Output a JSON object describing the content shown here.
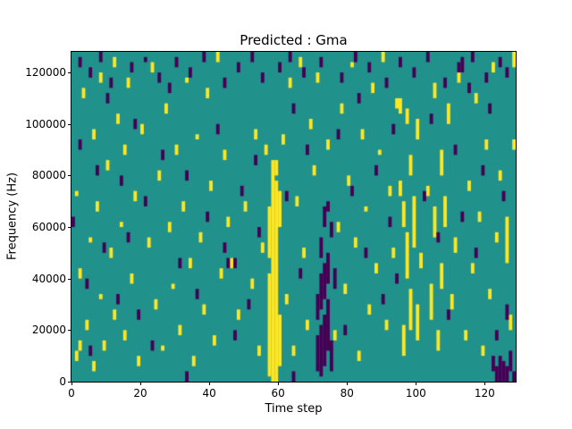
{
  "chart_data": {
    "type": "heatmap",
    "title": "Predicted : Gma",
    "xlabel": "Time step",
    "ylabel": "Frequency (Hz)",
    "x_range": [
      0,
      129
    ],
    "y_range": [
      0,
      128000
    ],
    "x_ticks": [
      0,
      20,
      40,
      60,
      80,
      100,
      120
    ],
    "y_ticks": [
      0,
      20000,
      40000,
      60000,
      80000,
      100000,
      120000
    ],
    "n_time_steps": 129,
    "n_freq_bins": 64,
    "freq_bin_hz": 2000,
    "legend": "none",
    "grid": false,
    "colors": {
      "background": "#21918c",
      "high": "#fde725",
      "low": "#440154"
    },
    "cells_note": "runs are [time_step, freq_bin_start, freq_bin_end]; freq_hz = bin * 2000",
    "cells_high": [
      [
        1,
        4,
        5
      ],
      [
        1,
        36,
        36
      ],
      [
        2,
        6,
        7
      ],
      [
        2,
        20,
        21
      ],
      [
        3,
        55,
        56
      ],
      [
        4,
        10,
        11
      ],
      [
        5,
        27,
        27
      ],
      [
        6,
        2,
        3
      ],
      [
        6,
        47,
        48
      ],
      [
        7,
        33,
        34
      ],
      [
        8,
        16,
        16
      ],
      [
        8,
        58,
        59
      ],
      [
        9,
        6,
        7
      ],
      [
        10,
        41,
        42
      ],
      [
        11,
        24,
        25
      ],
      [
        12,
        12,
        13
      ],
      [
        12,
        61,
        62
      ],
      [
        13,
        50,
        51
      ],
      [
        14,
        30,
        30
      ],
      [
        15,
        8,
        9
      ],
      [
        15,
        44,
        45
      ],
      [
        16,
        57,
        58
      ],
      [
        17,
        19,
        20
      ],
      [
        18,
        35,
        36
      ],
      [
        19,
        3,
        4
      ],
      [
        20,
        48,
        49
      ],
      [
        22,
        26,
        27
      ],
      [
        23,
        60,
        61
      ],
      [
        24,
        14,
        15
      ],
      [
        25,
        39,
        40
      ],
      [
        26,
        6,
        6
      ],
      [
        27,
        52,
        53
      ],
      [
        28,
        29,
        30
      ],
      [
        29,
        18,
        18
      ],
      [
        30,
        44,
        45
      ],
      [
        31,
        9,
        10
      ],
      [
        32,
        33,
        34
      ],
      [
        33,
        58,
        58
      ],
      [
        34,
        22,
        23
      ],
      [
        35,
        3,
        4
      ],
      [
        36,
        47,
        47
      ],
      [
        37,
        27,
        28
      ],
      [
        38,
        13,
        14
      ],
      [
        39,
        55,
        56
      ],
      [
        40,
        37,
        38
      ],
      [
        41,
        7,
        8
      ],
      [
        42,
        62,
        63
      ],
      [
        43,
        20,
        21
      ],
      [
        44,
        43,
        44
      ],
      [
        45,
        30,
        31
      ],
      [
        46,
        22,
        23
      ],
      [
        48,
        12,
        13
      ],
      [
        50,
        33,
        34
      ],
      [
        52,
        18,
        19
      ],
      [
        53,
        47,
        48
      ],
      [
        54,
        5,
        6
      ],
      [
        55,
        25,
        26
      ],
      [
        56,
        44,
        45
      ],
      [
        57,
        1,
        20
      ],
      [
        57,
        24,
        33
      ],
      [
        58,
        0,
        42
      ],
      [
        59,
        0,
        38
      ],
      [
        59,
        40,
        42
      ],
      [
        60,
        3,
        12
      ],
      [
        60,
        30,
        36
      ],
      [
        61,
        46,
        47
      ],
      [
        62,
        15,
        16
      ],
      [
        63,
        57,
        58
      ],
      [
        64,
        5,
        6
      ],
      [
        65,
        34,
        35
      ],
      [
        66,
        61,
        62
      ],
      [
        67,
        24,
        25
      ],
      [
        68,
        10,
        11
      ],
      [
        69,
        49,
        50
      ],
      [
        70,
        40,
        41
      ],
      [
        71,
        58,
        59
      ],
      [
        74,
        45,
        46
      ],
      [
        76,
        8,
        9
      ],
      [
        77,
        29,
        30
      ],
      [
        78,
        52,
        53
      ],
      [
        79,
        17,
        18
      ],
      [
        80,
        38,
        39
      ],
      [
        81,
        61,
        61
      ],
      [
        82,
        26,
        27
      ],
      [
        83,
        4,
        5
      ],
      [
        84,
        47,
        48
      ],
      [
        85,
        33,
        33
      ],
      [
        86,
        13,
        14
      ],
      [
        87,
        56,
        57
      ],
      [
        88,
        21,
        22
      ],
      [
        89,
        44,
        44
      ],
      [
        90,
        62,
        63
      ],
      [
        91,
        10,
        11
      ],
      [
        92,
        36,
        37
      ],
      [
        93,
        24,
        25
      ],
      [
        94,
        53,
        54
      ],
      [
        95,
        36,
        38
      ],
      [
        95,
        52,
        54
      ],
      [
        96,
        5,
        10
      ],
      [
        96,
        30,
        34
      ],
      [
        97,
        20,
        28
      ],
      [
        97,
        50,
        52
      ],
      [
        98,
        10,
        17
      ],
      [
        98,
        40,
        43
      ],
      [
        99,
        26,
        35
      ],
      [
        100,
        8,
        14
      ],
      [
        100,
        47,
        50
      ],
      [
        101,
        22,
        24
      ],
      [
        103,
        36,
        37
      ],
      [
        104,
        12,
        18
      ],
      [
        105,
        28,
        33
      ],
      [
        105,
        55,
        57
      ],
      [
        106,
        6,
        9
      ],
      [
        107,
        18,
        22
      ],
      [
        107,
        40,
        44
      ],
      [
        108,
        30,
        35
      ],
      [
        109,
        50,
        53
      ],
      [
        110,
        14,
        16
      ],
      [
        111,
        25,
        27
      ],
      [
        112,
        58,
        59
      ],
      [
        114,
        8,
        9
      ],
      [
        115,
        37,
        38
      ],
      [
        116,
        21,
        22
      ],
      [
        117,
        54,
        55
      ],
      [
        118,
        31,
        32
      ],
      [
        119,
        5,
        6
      ],
      [
        120,
        45,
        46
      ],
      [
        121,
        16,
        17
      ],
      [
        122,
        60,
        61
      ],
      [
        123,
        27,
        28
      ],
      [
        124,
        39,
        40
      ],
      [
        126,
        23,
        31
      ],
      [
        127,
        10,
        12
      ],
      [
        128,
        45,
        46
      ],
      [
        128,
        61,
        63
      ]
    ],
    "cells_low": [
      [
        2,
        61,
        62
      ],
      [
        5,
        59,
        60
      ],
      [
        8,
        62,
        63
      ],
      [
        11,
        57,
        58
      ],
      [
        17,
        60,
        61
      ],
      [
        21,
        62,
        62
      ],
      [
        25,
        58,
        59
      ],
      [
        30,
        61,
        62
      ],
      [
        34,
        59,
        60
      ],
      [
        38,
        62,
        63
      ],
      [
        44,
        57,
        58
      ],
      [
        48,
        60,
        61
      ],
      [
        52,
        62,
        63
      ],
      [
        55,
        58,
        59
      ],
      [
        60,
        60,
        61
      ],
      [
        63,
        62,
        63
      ],
      [
        67,
        59,
        60
      ],
      [
        72,
        61,
        62
      ],
      [
        78,
        58,
        59
      ],
      [
        82,
        62,
        63
      ],
      [
        86,
        60,
        61
      ],
      [
        91,
        57,
        58
      ],
      [
        95,
        61,
        62
      ],
      [
        99,
        59,
        60
      ],
      [
        103,
        62,
        63
      ],
      [
        108,
        57,
        58
      ],
      [
        112,
        60,
        61
      ],
      [
        113,
        60,
        62
      ],
      [
        116,
        62,
        63
      ],
      [
        120,
        58,
        59
      ],
      [
        124,
        61,
        62
      ],
      [
        126,
        59,
        60
      ],
      [
        0,
        30,
        31
      ],
      [
        2,
        45,
        46
      ],
      [
        4,
        18,
        19
      ],
      [
        5,
        5,
        6
      ],
      [
        7,
        40,
        41
      ],
      [
        9,
        25,
        26
      ],
      [
        10,
        54,
        55
      ],
      [
        13,
        15,
        16
      ],
      [
        14,
        38,
        39
      ],
      [
        16,
        27,
        28
      ],
      [
        18,
        49,
        50
      ],
      [
        19,
        12,
        13
      ],
      [
        21,
        34,
        35
      ],
      [
        23,
        6,
        7
      ],
      [
        26,
        43,
        44
      ],
      [
        28,
        56,
        57
      ],
      [
        31,
        22,
        23
      ],
      [
        33,
        0,
        1
      ],
      [
        33,
        39,
        40
      ],
      [
        36,
        16,
        17
      ],
      [
        39,
        31,
        32
      ],
      [
        42,
        48,
        49
      ],
      [
        44,
        25,
        26
      ],
      [
        45,
        22,
        23
      ],
      [
        47,
        8,
        9
      ],
      [
        47,
        22,
        23
      ],
      [
        49,
        36,
        37
      ],
      [
        51,
        14,
        15
      ],
      [
        53,
        42,
        43
      ],
      [
        54,
        28,
        29
      ],
      [
        62,
        35,
        36
      ],
      [
        64,
        0,
        1
      ],
      [
        64,
        52,
        53
      ],
      [
        66,
        20,
        21
      ],
      [
        68,
        44,
        45
      ],
      [
        71,
        2,
        8
      ],
      [
        71,
        12,
        16
      ],
      [
        72,
        1,
        10
      ],
      [
        72,
        14,
        20
      ],
      [
        72,
        24,
        27
      ],
      [
        73,
        3,
        12
      ],
      [
        73,
        16,
        22
      ],
      [
        73,
        30,
        33
      ],
      [
        74,
        6,
        15
      ],
      [
        74,
        19,
        24
      ],
      [
        74,
        33,
        34
      ],
      [
        75,
        2,
        7
      ],
      [
        75,
        28,
        30
      ],
      [
        76,
        18,
        21
      ],
      [
        77,
        47,
        48
      ],
      [
        79,
        9,
        10
      ],
      [
        81,
        36,
        37
      ],
      [
        83,
        54,
        55
      ],
      [
        85,
        24,
        25
      ],
      [
        88,
        40,
        41
      ],
      [
        90,
        15,
        16
      ],
      [
        92,
        30,
        31
      ],
      [
        93,
        48,
        49
      ],
      [
        94,
        19,
        20
      ],
      [
        102,
        35,
        36
      ],
      [
        104,
        50,
        51
      ],
      [
        106,
        27,
        28
      ],
      [
        109,
        12,
        13
      ],
      [
        111,
        44,
        45
      ],
      [
        113,
        31,
        32
      ],
      [
        115,
        56,
        57
      ],
      [
        117,
        24,
        25
      ],
      [
        119,
        40,
        41
      ],
      [
        121,
        52,
        53
      ],
      [
        123,
        8,
        9
      ],
      [
        125,
        35,
        36
      ],
      [
        122,
        2,
        4
      ],
      [
        123,
        0,
        2
      ],
      [
        124,
        0,
        4
      ],
      [
        125,
        0,
        3
      ],
      [
        126,
        0,
        2
      ],
      [
        126,
        12,
        14
      ],
      [
        127,
        2,
        5
      ],
      [
        128,
        0,
        1
      ]
    ]
  }
}
